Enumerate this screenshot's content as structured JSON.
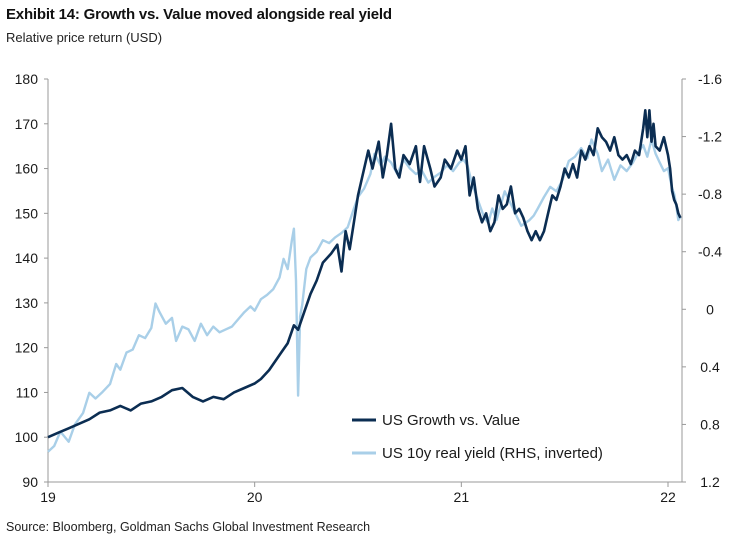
{
  "header": {
    "title": "Exhibit 14: Growth vs. Value moved alongside real yield",
    "subtitle": "Relative price return (USD)"
  },
  "footer": {
    "source": "Source: Bloomberg, Goldman Sachs Global Investment Research"
  },
  "colors": {
    "growth_vs_value": "#0b2d52",
    "real_yield": "#a9cfe8",
    "axis": "#999999"
  },
  "chart_data": {
    "type": "line",
    "title": "Exhibit 14: Growth vs. Value moved alongside real yield",
    "subtitle": "Relative price return (USD)",
    "x_axis": {
      "range": [
        2019.0,
        2022.0
      ],
      "ticks": [
        {
          "value": 2019,
          "label": "19"
        },
        {
          "value": 2020,
          "label": "20"
        },
        {
          "value": 2021,
          "label": "21"
        },
        {
          "value": 2022,
          "label": "22"
        }
      ]
    },
    "y_left": {
      "range": [
        90,
        180
      ],
      "ticks": [
        {
          "value": 180,
          "label": "180"
        },
        {
          "value": 170,
          "label": "170"
        },
        {
          "value": 160,
          "label": "160"
        },
        {
          "value": 150,
          "label": "150"
        },
        {
          "value": 140,
          "label": "140"
        },
        {
          "value": 130,
          "label": "130"
        },
        {
          "value": 120,
          "label": "120"
        },
        {
          "value": 110,
          "label": "110"
        },
        {
          "value": 100,
          "label": "100"
        },
        {
          "value": 90,
          "label": "90"
        }
      ]
    },
    "y_right": {
      "range": [
        -1.6,
        1.2
      ],
      "inverted": true,
      "ticks": [
        {
          "value": -1.6,
          "label": "-1.6"
        },
        {
          "value": -1.2,
          "label": "-1.2"
        },
        {
          "value": -0.8,
          "label": "-0.8"
        },
        {
          "value": -0.4,
          "label": "-0.4"
        },
        {
          "value": 0,
          "label": "0"
        },
        {
          "value": 0.4,
          "label": "0.4"
        },
        {
          "value": 0.8,
          "label": "0.8"
        },
        {
          "value": 1.2,
          "label": "1.2"
        }
      ]
    },
    "legend_position": "bottom-right",
    "series": [
      {
        "name": "US Growth vs. Value",
        "axis": "left",
        "points": [
          [
            2019.0,
            100
          ],
          [
            2019.05,
            101
          ],
          [
            2019.1,
            102
          ],
          [
            2019.15,
            103
          ],
          [
            2019.2,
            104
          ],
          [
            2019.25,
            105.5
          ],
          [
            2019.3,
            106
          ],
          [
            2019.35,
            107
          ],
          [
            2019.4,
            106
          ],
          [
            2019.45,
            107.5
          ],
          [
            2019.5,
            108
          ],
          [
            2019.55,
            109
          ],
          [
            2019.6,
            110.5
          ],
          [
            2019.65,
            111
          ],
          [
            2019.7,
            109
          ],
          [
            2019.75,
            108
          ],
          [
            2019.8,
            109
          ],
          [
            2019.85,
            108.5
          ],
          [
            2019.9,
            110
          ],
          [
            2019.95,
            111
          ],
          [
            2020.0,
            112
          ],
          [
            2020.03,
            113
          ],
          [
            2020.07,
            115
          ],
          [
            2020.1,
            117
          ],
          [
            2020.13,
            119
          ],
          [
            2020.16,
            121
          ],
          [
            2020.19,
            125
          ],
          [
            2020.21,
            124
          ],
          [
            2020.24,
            128
          ],
          [
            2020.27,
            132
          ],
          [
            2020.3,
            135
          ],
          [
            2020.33,
            139
          ],
          [
            2020.37,
            141
          ],
          [
            2020.4,
            143
          ],
          [
            2020.42,
            137
          ],
          [
            2020.44,
            146
          ],
          [
            2020.46,
            142
          ],
          [
            2020.48,
            148
          ],
          [
            2020.5,
            154
          ],
          [
            2020.52,
            158
          ],
          [
            2020.55,
            164
          ],
          [
            2020.57,
            160
          ],
          [
            2020.6,
            166
          ],
          [
            2020.62,
            158
          ],
          [
            2020.64,
            163
          ],
          [
            2020.66,
            170
          ],
          [
            2020.68,
            160
          ],
          [
            2020.7,
            158
          ],
          [
            2020.72,
            163
          ],
          [
            2020.75,
            161
          ],
          [
            2020.78,
            165
          ],
          [
            2020.8,
            157
          ],
          [
            2020.82,
            165
          ],
          [
            2020.85,
            160
          ],
          [
            2020.87,
            156
          ],
          [
            2020.9,
            158
          ],
          [
            2020.92,
            162
          ],
          [
            2020.95,
            160
          ],
          [
            2020.98,
            164
          ],
          [
            2021.0,
            162
          ],
          [
            2021.02,
            165
          ],
          [
            2021.04,
            154
          ],
          [
            2021.06,
            158
          ],
          [
            2021.08,
            151
          ],
          [
            2021.1,
            148
          ],
          [
            2021.12,
            150
          ],
          [
            2021.14,
            146
          ],
          [
            2021.16,
            148
          ],
          [
            2021.18,
            154
          ],
          [
            2021.2,
            151
          ],
          [
            2021.22,
            152
          ],
          [
            2021.24,
            156
          ],
          [
            2021.26,
            150
          ],
          [
            2021.28,
            151
          ],
          [
            2021.3,
            149
          ],
          [
            2021.32,
            146
          ],
          [
            2021.34,
            144
          ],
          [
            2021.36,
            146
          ],
          [
            2021.38,
            144
          ],
          [
            2021.4,
            146
          ],
          [
            2021.42,
            150
          ],
          [
            2021.44,
            154
          ],
          [
            2021.46,
            153
          ],
          [
            2021.48,
            156
          ],
          [
            2021.5,
            160
          ],
          [
            2021.52,
            158
          ],
          [
            2021.54,
            161
          ],
          [
            2021.56,
            158
          ],
          [
            2021.58,
            164
          ],
          [
            2021.6,
            162
          ],
          [
            2021.62,
            165
          ],
          [
            2021.64,
            163
          ],
          [
            2021.66,
            169
          ],
          [
            2021.68,
            167
          ],
          [
            2021.7,
            166
          ],
          [
            2021.72,
            164
          ],
          [
            2021.74,
            167
          ],
          [
            2021.76,
            163
          ],
          [
            2021.78,
            162
          ],
          [
            2021.8,
            163
          ],
          [
            2021.82,
            161
          ],
          [
            2021.84,
            164
          ],
          [
            2021.86,
            163
          ],
          [
            2021.88,
            169
          ],
          [
            2021.89,
            173
          ],
          [
            2021.9,
            167
          ],
          [
            2021.91,
            173
          ],
          [
            2021.92,
            166
          ],
          [
            2021.93,
            170
          ],
          [
            2021.94,
            165
          ],
          [
            2021.96,
            164
          ],
          [
            2021.98,
            167
          ],
          [
            2022.0,
            163
          ],
          [
            2022.01,
            160
          ],
          [
            2022.02,
            155
          ],
          [
            2022.03,
            153
          ],
          [
            2022.04,
            152
          ],
          [
            2022.05,
            150
          ],
          [
            2022.06,
            149
          ]
        ]
      },
      {
        "name": "US 10y real yield (RHS, inverted)",
        "axis": "right",
        "points": [
          [
            2019.0,
            0.99
          ],
          [
            2019.03,
            0.95
          ],
          [
            2019.06,
            0.85
          ],
          [
            2019.1,
            0.92
          ],
          [
            2019.13,
            0.8
          ],
          [
            2019.17,
            0.72
          ],
          [
            2019.2,
            0.58
          ],
          [
            2019.23,
            0.62
          ],
          [
            2019.26,
            0.58
          ],
          [
            2019.3,
            0.52
          ],
          [
            2019.33,
            0.38
          ],
          [
            2019.35,
            0.42
          ],
          [
            2019.38,
            0.3
          ],
          [
            2019.41,
            0.28
          ],
          [
            2019.44,
            0.18
          ],
          [
            2019.47,
            0.2
          ],
          [
            2019.5,
            0.13
          ],
          [
            2019.52,
            -0.04
          ],
          [
            2019.54,
            0.02
          ],
          [
            2019.57,
            0.1
          ],
          [
            2019.6,
            0.06
          ],
          [
            2019.62,
            0.22
          ],
          [
            2019.65,
            0.12
          ],
          [
            2019.68,
            0.14
          ],
          [
            2019.71,
            0.22
          ],
          [
            2019.74,
            0.1
          ],
          [
            2019.77,
            0.18
          ],
          [
            2019.8,
            0.12
          ],
          [
            2019.83,
            0.16
          ],
          [
            2019.86,
            0.14
          ],
          [
            2019.89,
            0.12
          ],
          [
            2019.92,
            0.07
          ],
          [
            2019.95,
            0.02
          ],
          [
            2019.98,
            -0.02
          ],
          [
            2020.0,
            0.01
          ],
          [
            2020.03,
            -0.07
          ],
          [
            2020.06,
            -0.1
          ],
          [
            2020.09,
            -0.14
          ],
          [
            2020.12,
            -0.22
          ],
          [
            2020.14,
            -0.35
          ],
          [
            2020.16,
            -0.28
          ],
          [
            2020.18,
            -0.48
          ],
          [
            2020.19,
            -0.56
          ],
          [
            2020.2,
            -0.2
          ],
          [
            2020.21,
            0.6
          ],
          [
            2020.22,
            0.05
          ],
          [
            2020.23,
            -0.03
          ],
          [
            2020.25,
            -0.28
          ],
          [
            2020.27,
            -0.36
          ],
          [
            2020.3,
            -0.4
          ],
          [
            2020.33,
            -0.48
          ],
          [
            2020.36,
            -0.46
          ],
          [
            2020.39,
            -0.5
          ],
          [
            2020.42,
            -0.53
          ],
          [
            2020.45,
            -0.57
          ],
          [
            2020.48,
            -0.7
          ],
          [
            2020.5,
            -0.78
          ],
          [
            2020.53,
            -0.84
          ],
          [
            2020.56,
            -0.94
          ],
          [
            2020.58,
            -1.08
          ],
          [
            2020.61,
            -1.0
          ],
          [
            2020.63,
            -1.06
          ],
          [
            2020.66,
            -1.02
          ],
          [
            2020.69,
            -0.94
          ],
          [
            2020.72,
            -1.04
          ],
          [
            2020.75,
            -0.98
          ],
          [
            2020.78,
            -0.94
          ],
          [
            2020.81,
            -0.96
          ],
          [
            2020.84,
            -0.88
          ],
          [
            2020.87,
            -0.92
          ],
          [
            2020.9,
            -0.95
          ],
          [
            2020.93,
            -1.0
          ],
          [
            2020.96,
            -0.96
          ],
          [
            2020.99,
            -1.02
          ],
          [
            2021.01,
            -1.04
          ],
          [
            2021.03,
            -1.0
          ],
          [
            2021.05,
            -0.88
          ],
          [
            2021.07,
            -0.8
          ],
          [
            2021.09,
            -0.72
          ],
          [
            2021.11,
            -0.64
          ],
          [
            2021.13,
            -0.6
          ],
          [
            2021.15,
            -0.7
          ],
          [
            2021.17,
            -0.62
          ],
          [
            2021.19,
            -0.72
          ],
          [
            2021.21,
            -0.82
          ],
          [
            2021.23,
            -0.76
          ],
          [
            2021.25,
            -0.7
          ],
          [
            2021.27,
            -0.64
          ],
          [
            2021.29,
            -0.58
          ],
          [
            2021.31,
            -0.6
          ],
          [
            2021.33,
            -0.62
          ],
          [
            2021.35,
            -0.65
          ],
          [
            2021.37,
            -0.7
          ],
          [
            2021.4,
            -0.78
          ],
          [
            2021.43,
            -0.85
          ],
          [
            2021.46,
            -0.82
          ],
          [
            2021.49,
            -0.9
          ],
          [
            2021.52,
            -1.03
          ],
          [
            2021.55,
            -1.06
          ],
          [
            2021.58,
            -1.12
          ],
          [
            2021.61,
            -1.05
          ],
          [
            2021.63,
            -1.18
          ],
          [
            2021.66,
            -1.08
          ],
          [
            2021.68,
            -0.96
          ],
          [
            2021.71,
            -1.04
          ],
          [
            2021.74,
            -0.9
          ],
          [
            2021.77,
            -1.0
          ],
          [
            2021.8,
            -0.96
          ],
          [
            2021.83,
            -1.02
          ],
          [
            2021.86,
            -1.1
          ],
          [
            2021.88,
            -1.14
          ],
          [
            2021.9,
            -1.06
          ],
          [
            2021.92,
            -1.18
          ],
          [
            2021.94,
            -1.08
          ],
          [
            2021.96,
            -1.02
          ],
          [
            2021.98,
            -0.96
          ],
          [
            2022.0,
            -0.98
          ],
          [
            2022.02,
            -0.84
          ],
          [
            2022.03,
            -0.8
          ],
          [
            2022.04,
            -0.72
          ],
          [
            2022.05,
            -0.62
          ],
          [
            2022.06,
            -0.64
          ]
        ]
      }
    ]
  }
}
